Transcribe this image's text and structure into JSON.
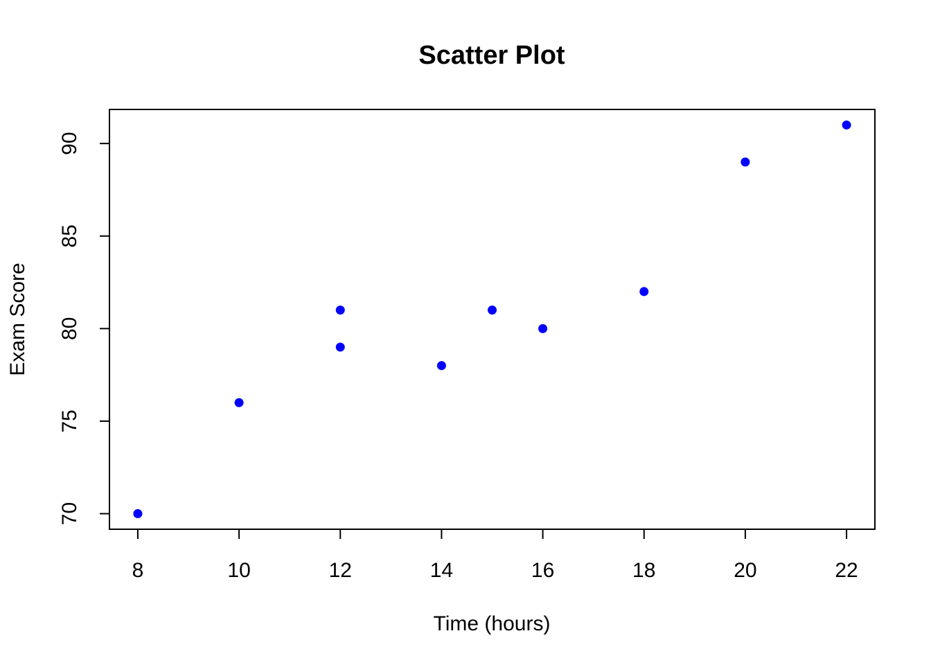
{
  "chart_data": {
    "type": "scatter",
    "title": "Scatter Plot",
    "xlabel": "Time (hours)",
    "ylabel": "Exam Score",
    "xlim": [
      7.44,
      22.56
    ],
    "ylim": [
      69.16,
      91.84
    ],
    "xticks": [
      8,
      10,
      12,
      14,
      16,
      18,
      20,
      22
    ],
    "yticks": [
      70,
      75,
      80,
      85,
      90
    ],
    "grid": false,
    "point_color": "#0000ff",
    "series": [
      {
        "x": [
          8,
          10,
          12,
          12,
          14,
          15,
          16,
          18,
          20,
          22
        ],
        "y": [
          70,
          76,
          79,
          81,
          78,
          81,
          80,
          82,
          89,
          91
        ]
      }
    ]
  }
}
